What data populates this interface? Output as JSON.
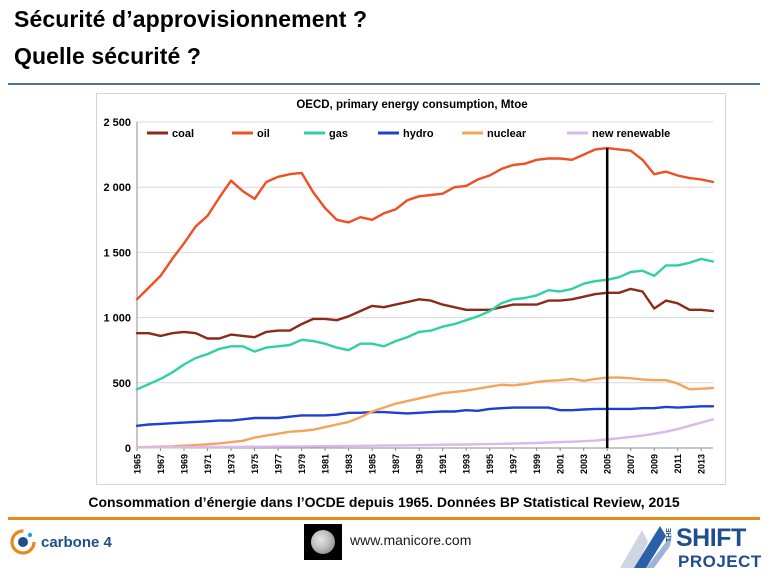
{
  "slide": {
    "title_line1": "Sécurité d’approvisionnement ?",
    "title_line2": "Quelle sécurité ?",
    "caption": "Consommation d’énergie dans l’OCDE depuis 1965. Données BP Statistical Review, 2015"
  },
  "footer": {
    "carbone4_label": "carbone 4",
    "website": "www.manicore.com",
    "shift_word": "SHIFT",
    "shift_the": "THE",
    "shift_project": "PROJECT"
  },
  "colors": {
    "coal": "#8b2a1a",
    "oil": "#f04e23",
    "gas": "#2ed1a3",
    "hydro": "#1f3fd1",
    "nuclear": "#f7a35c",
    "new_renewable": "#d9b8ec",
    "marker": "#000000"
  },
  "chart_data": {
    "type": "line",
    "title": "OECD, primary energy consumption, Mtoe",
    "xlabel": "",
    "ylabel": "",
    "ylim": [
      0,
      2500
    ],
    "yticks": [
      0,
      500,
      1000,
      1500,
      2000,
      2500
    ],
    "ytick_labels": [
      "0",
      "500",
      "1 000",
      "1 500",
      "2 000",
      "2 500"
    ],
    "xtick_labels": [
      "1965",
      "1967",
      "1969",
      "1971",
      "1973",
      "1975",
      "1977",
      "1979",
      "1981",
      "1983",
      "1985",
      "1987",
      "1989",
      "1991",
      "1993",
      "1995",
      "1997",
      "1999",
      "2001",
      "2003",
      "2005",
      "2007",
      "2009",
      "2011",
      "2013"
    ],
    "grid": "horizontal",
    "legend_position": "top",
    "vertical_marker_year": 2005,
    "x": [
      1965,
      1966,
      1967,
      1968,
      1969,
      1970,
      1971,
      1972,
      1973,
      1974,
      1975,
      1976,
      1977,
      1978,
      1979,
      1980,
      1981,
      1982,
      1983,
      1984,
      1985,
      1986,
      1987,
      1988,
      1989,
      1990,
      1991,
      1992,
      1993,
      1994,
      1995,
      1996,
      1997,
      1998,
      1999,
      2000,
      2001,
      2002,
      2003,
      2004,
      2005,
      2006,
      2007,
      2008,
      2009,
      2010,
      2011,
      2012,
      2013,
      2014
    ],
    "series": [
      {
        "name": "coal",
        "values": [
          880,
          880,
          860,
          880,
          890,
          880,
          840,
          840,
          870,
          860,
          850,
          890,
          900,
          900,
          950,
          990,
          990,
          980,
          1010,
          1050,
          1090,
          1080,
          1100,
          1120,
          1140,
          1130,
          1100,
          1080,
          1060,
          1060,
          1060,
          1080,
          1100,
          1100,
          1100,
          1130,
          1130,
          1140,
          1160,
          1180,
          1190,
          1190,
          1220,
          1200,
          1070,
          1130,
          1110,
          1060,
          1060,
          1050
        ]
      },
      {
        "name": "oil",
        "values": [
          1140,
          1230,
          1320,
          1450,
          1570,
          1700,
          1780,
          1920,
          2050,
          1970,
          1910,
          2040,
          2080,
          2100,
          2110,
          1960,
          1840,
          1750,
          1730,
          1770,
          1750,
          1800,
          1830,
          1900,
          1930,
          1940,
          1950,
          2000,
          2010,
          2060,
          2090,
          2140,
          2170,
          2180,
          2210,
          2220,
          2220,
          2210,
          2250,
          2290,
          2300,
          2290,
          2280,
          2210,
          2100,
          2120,
          2090,
          2070,
          2060,
          2040
        ]
      },
      {
        "name": "gas",
        "values": [
          450,
          490,
          530,
          580,
          640,
          690,
          720,
          760,
          780,
          780,
          740,
          770,
          780,
          790,
          830,
          820,
          800,
          770,
          750,
          800,
          800,
          780,
          820,
          850,
          890,
          900,
          930,
          950,
          980,
          1010,
          1050,
          1110,
          1140,
          1150,
          1170,
          1210,
          1200,
          1220,
          1260,
          1280,
          1290,
          1310,
          1350,
          1360,
          1320,
          1400,
          1400,
          1420,
          1450,
          1430
        ]
      },
      {
        "name": "hydro",
        "values": [
          170,
          180,
          185,
          190,
          195,
          200,
          205,
          210,
          210,
          220,
          230,
          230,
          230,
          240,
          250,
          250,
          250,
          255,
          270,
          270,
          275,
          275,
          270,
          265,
          270,
          275,
          280,
          280,
          290,
          285,
          300,
          305,
          310,
          310,
          310,
          310,
          290,
          290,
          295,
          300,
          300,
          300,
          300,
          305,
          305,
          315,
          310,
          315,
          320,
          320
        ]
      },
      {
        "name": "nuclear",
        "values": [
          5,
          8,
          10,
          12,
          18,
          22,
          28,
          35,
          45,
          55,
          80,
          95,
          110,
          125,
          130,
          140,
          160,
          180,
          200,
          235,
          280,
          310,
          340,
          360,
          380,
          400,
          420,
          430,
          440,
          455,
          470,
          485,
          480,
          490,
          505,
          515,
          520,
          530,
          515,
          530,
          540,
          540,
          535,
          525,
          520,
          520,
          495,
          450,
          455,
          460
        ]
      },
      {
        "name": "new renewable",
        "values": [
          4,
          5,
          5,
          6,
          6,
          7,
          7,
          8,
          8,
          9,
          10,
          10,
          11,
          12,
          12,
          13,
          14,
          15,
          16,
          17,
          18,
          19,
          20,
          21,
          22,
          23,
          25,
          26,
          27,
          29,
          30,
          32,
          34,
          36,
          38,
          42,
          45,
          48,
          52,
          57,
          65,
          75,
          85,
          95,
          110,
          125,
          145,
          170,
          195,
          220
        ]
      }
    ]
  }
}
